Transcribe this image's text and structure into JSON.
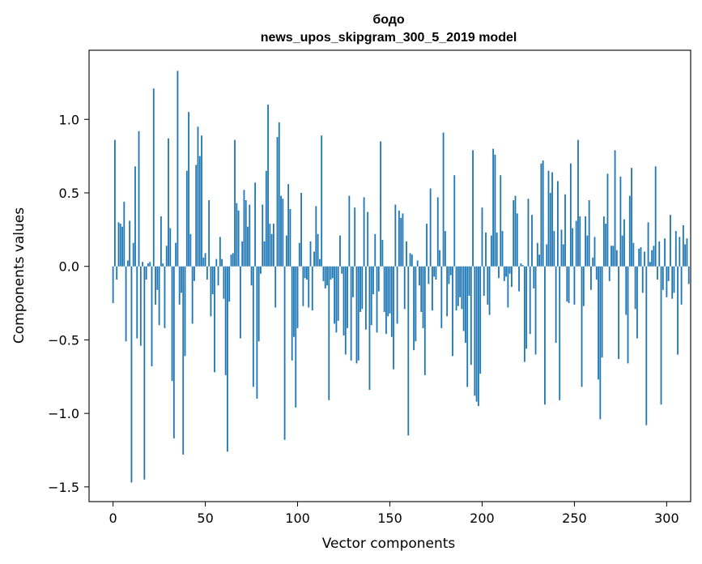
{
  "chart_data": {
    "type": "bar",
    "title": "бодо",
    "subtitle": "news_upos_skipgram_300_5_2019 model",
    "xlabel": "Vector components",
    "ylabel": "Components values",
    "xlim": [
      -13,
      313
    ],
    "ylim": [
      -1.6,
      1.47
    ],
    "xticks": [
      0,
      50,
      100,
      150,
      200,
      250,
      300
    ],
    "xtick_labels": [
      "0",
      "50",
      "100",
      "150",
      "200",
      "250",
      "300"
    ],
    "yticks": [
      -1.5,
      -1.0,
      -0.5,
      0.0,
      0.5,
      1.0
    ],
    "ytick_labels": [
      "−1.5",
      "−1.0",
      "−0.5",
      "0.0",
      "0.5",
      "1.0"
    ],
    "grid": false,
    "bar_color": "#1f77b4",
    "values": [
      -0.25,
      0.86,
      -0.09,
      0.3,
      0.29,
      0.27,
      0.44,
      -0.51,
      0.04,
      0.31,
      -1.47,
      0.16,
      0.68,
      -0.49,
      0.92,
      -0.54,
      0.03,
      -1.45,
      -0.09,
      0.02,
      0.03,
      -0.68,
      1.21,
      -0.26,
      -0.16,
      -0.4,
      0.34,
      0.02,
      -0.42,
      0.14,
      0.87,
      0.26,
      -0.78,
      -1.17,
      0.16,
      1.33,
      -0.26,
      -0.18,
      -1.28,
      -0.61,
      0.65,
      1.05,
      0.22,
      -0.39,
      -0.1,
      0.69,
      0.95,
      0.75,
      0.89,
      0.06,
      0.09,
      -0.09,
      0.45,
      -0.34,
      -0.19,
      -0.72,
      0.05,
      -0.13,
      0.2,
      0.05,
      -0.22,
      -0.74,
      -1.26,
      -0.24,
      0.08,
      0.09,
      0.86,
      0.43,
      0.38,
      -0.49,
      0.17,
      0.52,
      0.45,
      0.27,
      0.42,
      -0.13,
      -0.82,
      0.57,
      -0.9,
      -0.51,
      -0.05,
      0.42,
      0.17,
      0.65,
      1.1,
      0.29,
      0.22,
      0.29,
      -0.28,
      0.88,
      0.98,
      0.48,
      0.46,
      -1.18,
      0.21,
      0.56,
      0.39,
      -0.64,
      -0.48,
      -0.96,
      -0.42,
      0.16,
      0.5,
      -0.27,
      -0.08,
      -0.09,
      -0.28,
      0.17,
      -0.3,
      0.1,
      0.41,
      0.22,
      0.05,
      0.89,
      -0.1,
      -0.15,
      -0.13,
      -0.91,
      -0.09,
      -0.08,
      -0.39,
      -0.45,
      -0.37,
      0.21,
      -0.05,
      -0.47,
      -0.6,
      -0.42,
      0.48,
      -0.64,
      -0.21,
      0.4,
      -0.66,
      -0.64,
      -0.31,
      -0.29,
      0.47,
      -0.43,
      0.37,
      -0.84,
      -0.4,
      -0.19,
      0.22,
      -0.45,
      -0.17,
      0.85,
      0.18,
      -0.31,
      -0.46,
      -0.34,
      -0.32,
      -0.48,
      -0.7,
      0.42,
      -0.39,
      0.38,
      0.33,
      0.36,
      -0.29,
      0.17,
      -1.15,
      0.09,
      0.08,
      -0.57,
      -0.51,
      0.04,
      -0.13,
      -0.31,
      -0.42,
      -0.74,
      0.29,
      -0.12,
      0.53,
      -0.3,
      -0.07,
      -0.09,
      0.47,
      0.11,
      -0.42,
      0.91,
      0.24,
      -0.34,
      -0.12,
      -0.06,
      -0.61,
      0.62,
      -0.3,
      -0.27,
      -0.21,
      -0.29,
      -0.44,
      -0.52,
      -0.82,
      -0.2,
      -0.67,
      0.79,
      -0.88,
      -0.92,
      -0.95,
      -0.73,
      0.4,
      -0.2,
      0.23,
      -0.26,
      -0.33,
      0.21,
      0.8,
      0.76,
      0.23,
      -0.08,
      0.62,
      0.24,
      -0.1,
      -0.07,
      -0.28,
      -0.05,
      -0.14,
      0.45,
      0.48,
      0.36,
      -0.17,
      0.02,
      0.01,
      -0.65,
      -0.56,
      0.46,
      -0.46,
      0.35,
      -0.15,
      -0.6,
      0.16,
      0.08,
      0.7,
      0.72,
      -0.94,
      0.15,
      0.65,
      0.5,
      0.64,
      0.24,
      -0.52,
      0.58,
      -0.91,
      0.25,
      0.15,
      0.49,
      -0.24,
      -0.25,
      0.7,
      0.26,
      -0.26,
      0.31,
      0.86,
      0.34,
      -0.82,
      -0.27,
      0.34,
      0.21,
      0.45,
      -0.16,
      0.06,
      0.2,
      -0.09,
      -0.77,
      -1.04,
      -0.62,
      0.34,
      0.29,
      0.63,
      -0.1,
      0.14,
      0.14,
      0.79,
      0.11,
      -0.63,
      0.61,
      0.21,
      0.32,
      -0.33,
      -0.66,
      0.48,
      0.67,
      0.16,
      -0.29,
      -0.49,
      0.12,
      0.13,
      -0.18,
      0.1,
      -1.08,
      0.3,
      0.03,
      0.11,
      0.14,
      0.68,
      -0.09,
      0.17,
      -0.94,
      -0.16,
      0.19,
      -0.21,
      -0.1,
      0.35,
      -0.22,
      -0.18,
      0.24,
      -0.6,
      0.2,
      -0.26,
      0.28,
      0.15,
      0.19,
      -0.12
    ]
  }
}
